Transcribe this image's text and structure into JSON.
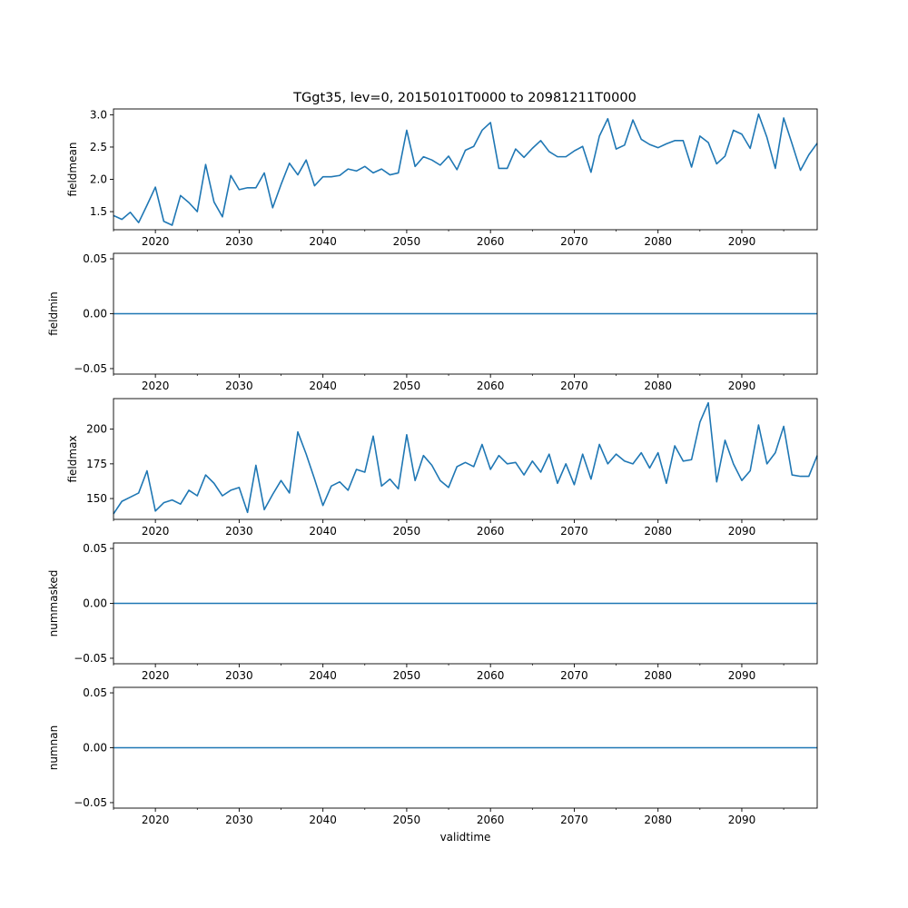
{
  "title": "TGgt35, lev=0, 20150101T0000 to 20981211T0000",
  "colors": {
    "line": "#1f77b4",
    "axis": "#000000",
    "background": "#ffffff"
  },
  "chart_data": [
    {
      "type": "line",
      "ylabel": "fieldmean",
      "xlabel": "",
      "xlim": [
        2015,
        2099
      ],
      "ylim": [
        1.22,
        3.09
      ],
      "x_ticks": [
        2020,
        2030,
        2040,
        2050,
        2060,
        2070,
        2080,
        2090
      ],
      "y_ticks": [
        1.5,
        2.0,
        2.5,
        3.0
      ],
      "y_tick_labels": [
        "1.5",
        "2.0",
        "2.5",
        "3.0"
      ],
      "x": [
        2015,
        2016,
        2017,
        2018,
        2019,
        2020,
        2021,
        2022,
        2023,
        2024,
        2025,
        2026,
        2027,
        2028,
        2029,
        2030,
        2031,
        2032,
        2033,
        2034,
        2035,
        2036,
        2037,
        2038,
        2039,
        2040,
        2041,
        2042,
        2043,
        2044,
        2045,
        2046,
        2047,
        2048,
        2049,
        2050,
        2051,
        2052,
        2053,
        2054,
        2055,
        2056,
        2057,
        2058,
        2059,
        2060,
        2061,
        2062,
        2063,
        2064,
        2065,
        2066,
        2067,
        2068,
        2069,
        2070,
        2071,
        2072,
        2073,
        2074,
        2075,
        2076,
        2077,
        2078,
        2079,
        2080,
        2081,
        2082,
        2083,
        2084,
        2085,
        2086,
        2087,
        2088,
        2089,
        2090,
        2091,
        2092,
        2093,
        2094,
        2095,
        2096,
        2097,
        2098,
        2099
      ],
      "values": [
        1.44,
        1.38,
        1.49,
        1.33,
        1.6,
        1.88,
        1.35,
        1.29,
        1.75,
        1.64,
        1.5,
        2.23,
        1.65,
        1.42,
        2.06,
        1.84,
        1.87,
        1.87,
        2.1,
        1.56,
        1.92,
        2.25,
        2.07,
        2.3,
        1.9,
        2.04,
        2.04,
        2.06,
        2.16,
        2.13,
        2.2,
        2.1,
        2.16,
        2.07,
        2.1,
        2.76,
        2.2,
        2.35,
        2.3,
        2.22,
        2.36,
        2.15,
        2.45,
        2.51,
        2.76,
        2.88,
        2.17,
        2.17,
        2.47,
        2.34,
        2.48,
        2.6,
        2.43,
        2.35,
        2.35,
        2.44,
        2.51,
        2.11,
        2.67,
        2.94,
        2.47,
        2.53,
        2.92,
        2.62,
        2.54,
        2.49,
        2.55,
        2.6,
        2.6,
        2.19,
        2.67,
        2.57,
        2.24,
        2.36,
        2.76,
        2.7,
        2.48,
        3.01,
        2.65,
        2.17,
        2.95,
        2.55,
        2.14,
        2.38,
        2.56
      ]
    },
    {
      "type": "line",
      "ylabel": "fieldmin",
      "xlabel": "",
      "xlim": [
        2015,
        2099
      ],
      "ylim": [
        -0.055,
        0.055
      ],
      "x_ticks": [
        2020,
        2030,
        2040,
        2050,
        2060,
        2070,
        2080,
        2090
      ],
      "y_ticks": [
        -0.05,
        0.0,
        0.05
      ],
      "y_tick_labels": [
        "−0.05",
        "0.00",
        "0.05"
      ],
      "x": [
        2015,
        2099
      ],
      "values": [
        0,
        0
      ]
    },
    {
      "type": "line",
      "ylabel": "fieldmax",
      "xlabel": "",
      "xlim": [
        2015,
        2099
      ],
      "ylim": [
        135,
        222
      ],
      "x_ticks": [
        2020,
        2030,
        2040,
        2050,
        2060,
        2070,
        2080,
        2090
      ],
      "y_ticks": [
        150,
        175,
        200
      ],
      "y_tick_labels": [
        "150",
        "175",
        "200"
      ],
      "x": [
        2015,
        2016,
        2017,
        2018,
        2019,
        2020,
        2021,
        2022,
        2023,
        2024,
        2025,
        2026,
        2027,
        2028,
        2029,
        2030,
        2031,
        2032,
        2033,
        2034,
        2035,
        2036,
        2037,
        2038,
        2039,
        2040,
        2041,
        2042,
        2043,
        2044,
        2045,
        2046,
        2047,
        2048,
        2049,
        2050,
        2051,
        2052,
        2053,
        2054,
        2055,
        2056,
        2057,
        2058,
        2059,
        2060,
        2061,
        2062,
        2063,
        2064,
        2065,
        2066,
        2067,
        2068,
        2069,
        2070,
        2071,
        2072,
        2073,
        2074,
        2075,
        2076,
        2077,
        2078,
        2079,
        2080,
        2081,
        2082,
        2083,
        2084,
        2085,
        2086,
        2087,
        2088,
        2089,
        2090,
        2091,
        2092,
        2093,
        2094,
        2095,
        2096,
        2097,
        2098,
        2099
      ],
      "values": [
        139,
        148,
        151,
        154,
        170,
        141,
        147,
        149,
        146,
        156,
        152,
        167,
        161,
        152,
        156,
        158,
        140,
        174,
        142,
        153,
        163,
        154,
        198,
        182,
        164,
        145,
        159,
        162,
        156,
        171,
        169,
        195,
        159,
        164,
        157,
        196,
        163,
        181,
        174,
        163,
        158,
        173,
        176,
        173,
        189,
        171,
        181,
        175,
        176,
        167,
        177,
        169,
        182,
        161,
        175,
        160,
        182,
        164,
        189,
        175,
        182,
        177,
        175,
        183,
        172,
        183,
        161,
        188,
        177,
        178,
        205,
        219,
        162,
        192,
        175,
        163,
        170,
        203,
        175,
        183,
        202,
        167,
        166,
        166,
        181
      ]
    },
    {
      "type": "line",
      "ylabel": "nummasked",
      "xlabel": "",
      "xlim": [
        2015,
        2099
      ],
      "ylim": [
        -0.055,
        0.055
      ],
      "x_ticks": [
        2020,
        2030,
        2040,
        2050,
        2060,
        2070,
        2080,
        2090
      ],
      "y_ticks": [
        -0.05,
        0.0,
        0.05
      ],
      "y_tick_labels": [
        "−0.05",
        "0.00",
        "0.05"
      ],
      "x": [
        2015,
        2099
      ],
      "values": [
        0,
        0
      ]
    },
    {
      "type": "line",
      "ylabel": "numnan",
      "xlabel": "validtime",
      "xlim": [
        2015,
        2099
      ],
      "ylim": [
        -0.055,
        0.055
      ],
      "x_ticks": [
        2020,
        2030,
        2040,
        2050,
        2060,
        2070,
        2080,
        2090
      ],
      "y_ticks": [
        -0.05,
        0.0,
        0.05
      ],
      "y_tick_labels": [
        "−0.05",
        "0.00",
        "0.05"
      ],
      "x": [
        2015,
        2099
      ],
      "values": [
        0,
        0
      ]
    }
  ]
}
